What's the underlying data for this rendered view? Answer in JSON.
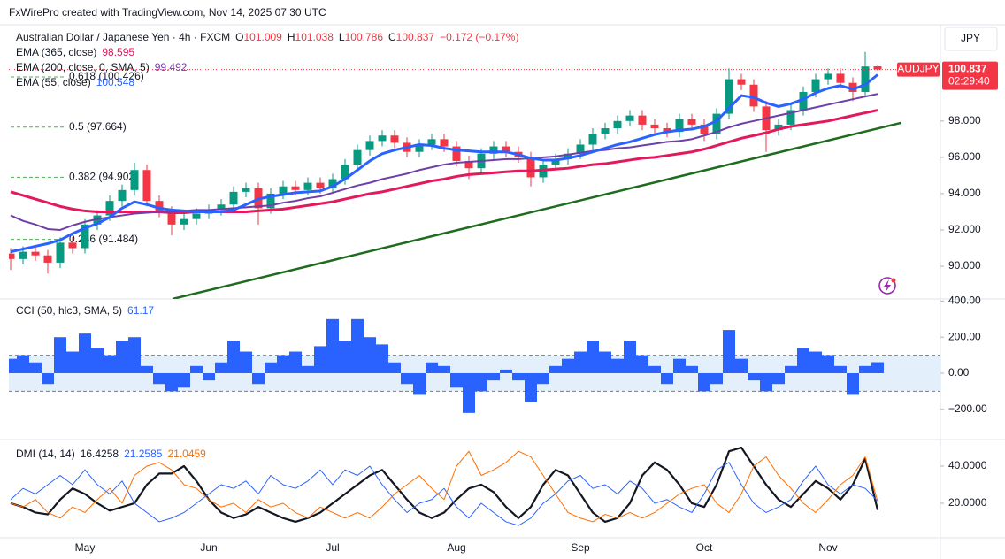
{
  "header": "FxWirePro created with TradingView.com, Nov 14, 2025 07:30 UTC",
  "chart_data": [
    {
      "type": "candlestick",
      "title": "Australian Dollar / Japanese Yen · 4h · FXCM",
      "ohlc_labels": [
        "O",
        "H",
        "L",
        "C"
      ],
      "change": "−0.172 (−0.17%)",
      "symbol": "AUDJPY",
      "currency": "JPY",
      "countdown": "02:29:40",
      "up_color": "#089981",
      "down_color": "#f23645",
      "ylim": [
        88.2,
        103.3
      ],
      "yticks": [
        {
          "value": 90,
          "label": "90.000"
        },
        {
          "value": 92,
          "label": "92.000"
        },
        {
          "value": 94,
          "label": "94.000"
        },
        {
          "value": 96,
          "label": "96.000"
        },
        {
          "value": 98,
          "label": "98.000"
        }
      ],
      "open": [
        90.7,
        90.4,
        90.8,
        90.6,
        90.2,
        91.3,
        91.0,
        92.3,
        92.8,
        93.6,
        94.2,
        95.3,
        93.6,
        93.0,
        92.3,
        92.6,
        92.9,
        93.1,
        93.4,
        94.1,
        94.3,
        93.2,
        94.0,
        94.4,
        94.2,
        94.6,
        94.3,
        94.8,
        95.6,
        96.4,
        96.9,
        97.2,
        96.8,
        96.3,
        96.7,
        97.0,
        96.6,
        95.8,
        95.4,
        96.2,
        96.6,
        96.3,
        96.0,
        94.9,
        95.6,
        95.9,
        96.2,
        96.7,
        97.3,
        97.6,
        98.0,
        98.3,
        97.8,
        97.6,
        97.4,
        98.1,
        97.8,
        97.3,
        98.4,
        100.3,
        100.0,
        98.8,
        97.5,
        97.8,
        98.6,
        99.6,
        100.3,
        100.6,
        100.1,
        99.6,
        101.009
      ],
      "high": [
        91.0,
        91.1,
        91.1,
        90.9,
        91.6,
        91.6,
        92.6,
        93.1,
        93.9,
        94.5,
        95.7,
        95.6,
        93.9,
        93.3,
        92.9,
        93.2,
        93.4,
        93.7,
        94.4,
        94.6,
        94.6,
        94.3,
        94.7,
        94.7,
        94.9,
        94.9,
        95.1,
        95.9,
        96.7,
        97.2,
        97.5,
        97.5,
        97.1,
        97.0,
        97.3,
        97.3,
        96.9,
        96.1,
        96.5,
        96.9,
        96.9,
        96.6,
        96.3,
        95.9,
        96.2,
        96.5,
        97.0,
        97.6,
        97.9,
        98.3,
        98.6,
        98.6,
        98.1,
        97.9,
        98.4,
        98.4,
        98.1,
        98.7,
        100.9,
        100.6,
        100.3,
        99.1,
        98.1,
        98.9,
        99.9,
        100.6,
        100.9,
        100.9,
        100.4,
        101.8,
        101.038
      ],
      "low": [
        89.8,
        90.1,
        90.3,
        89.6,
        89.9,
        90.7,
        90.7,
        92.0,
        92.5,
        93.3,
        93.9,
        93.3,
        92.7,
        91.7,
        92.0,
        92.3,
        92.6,
        92.8,
        93.1,
        93.8,
        92.3,
        92.9,
        93.7,
        93.9,
        93.9,
        94.0,
        94.0,
        94.5,
        95.3,
        96.1,
        96.6,
        96.5,
        96.0,
        96.0,
        96.4,
        96.3,
        95.5,
        94.8,
        95.1,
        95.9,
        96.0,
        95.7,
        94.4,
        94.6,
        95.3,
        95.6,
        95.9,
        96.4,
        97.0,
        97.3,
        97.7,
        97.5,
        97.3,
        97.1,
        97.1,
        97.5,
        96.9,
        97.0,
        98.1,
        99.7,
        98.5,
        96.3,
        97.2,
        97.5,
        98.3,
        99.3,
        100.0,
        99.8,
        99.1,
        99.3,
        100.786
      ],
      "close": [
        90.4,
        90.8,
        90.6,
        90.2,
        91.3,
        91.0,
        92.3,
        92.8,
        93.6,
        94.2,
        95.3,
        93.6,
        93.0,
        92.3,
        92.6,
        92.9,
        93.1,
        93.4,
        94.1,
        94.3,
        93.2,
        94.0,
        94.4,
        94.2,
        94.6,
        94.3,
        94.8,
        95.6,
        96.4,
        96.9,
        97.2,
        96.8,
        96.3,
        96.7,
        97.0,
        96.6,
        95.8,
        95.4,
        96.2,
        96.6,
        96.3,
        96.0,
        94.9,
        95.6,
        95.9,
        96.2,
        96.7,
        97.3,
        97.6,
        98.0,
        98.3,
        97.8,
        97.6,
        97.4,
        98.1,
        97.8,
        97.3,
        98.4,
        100.3,
        100.0,
        98.8,
        97.5,
        97.8,
        98.6,
        99.6,
        100.3,
        100.6,
        100.1,
        99.6,
        101.0,
        100.837
      ],
      "series": [
        {
          "name": "EMA (365, close)",
          "color": "#e2195a",
          "width": 3,
          "values": [
            94.1,
            93.9,
            93.7,
            93.5,
            93.3,
            93.15,
            93.05,
            93.0,
            93.0,
            93.0,
            93.0,
            93.0,
            93.0,
            92.95,
            92.95,
            93.0,
            93.0,
            93.0,
            93.0,
            93.0,
            93.05,
            93.1,
            93.15,
            93.25,
            93.35,
            93.45,
            93.55,
            93.7,
            93.85,
            94.0,
            94.1,
            94.25,
            94.4,
            94.55,
            94.7,
            94.8,
            94.95,
            95.05,
            95.1,
            95.15,
            95.2,
            95.25,
            95.25,
            95.3,
            95.35,
            95.4,
            95.5,
            95.6,
            95.65,
            95.75,
            95.85,
            95.95,
            96.0,
            96.1,
            96.2,
            96.3,
            96.45,
            96.65,
            96.85,
            97.05,
            97.2,
            97.35,
            97.55,
            97.7,
            97.8,
            97.9,
            98.0,
            98.15,
            98.3,
            98.45,
            98.595
          ]
        },
        {
          "name": "EMA (200, close, 0, SMA, 5)",
          "color": "#6f3fa8",
          "width": 2,
          "values": [
            92.8,
            92.5,
            92.3,
            92.05,
            92.0,
            92.25,
            92.45,
            92.6,
            92.7,
            92.8,
            92.9,
            92.95,
            93.0,
            93.0,
            93.05,
            93.1,
            93.1,
            93.15,
            93.2,
            93.25,
            93.3,
            93.35,
            93.5,
            93.6,
            93.75,
            93.85,
            94.05,
            94.25,
            94.45,
            94.6,
            94.8,
            94.95,
            95.1,
            95.3,
            95.45,
            95.6,
            95.7,
            95.75,
            95.8,
            95.85,
            95.9,
            95.9,
            95.95,
            96.0,
            96.05,
            96.15,
            96.25,
            96.35,
            96.4,
            96.5,
            96.55,
            96.65,
            96.75,
            96.85,
            96.9,
            97.0,
            97.2,
            97.4,
            97.65,
            97.85,
            98.0,
            98.15,
            98.3,
            98.45,
            98.6,
            98.75,
            98.9,
            99.05,
            99.2,
            99.35,
            99.492
          ]
        },
        {
          "name": "EMA (55, close)",
          "color": "#2962ff",
          "width": 3,
          "values": [
            90.8,
            90.95,
            91.1,
            91.25,
            91.45,
            91.8,
            92.1,
            92.35,
            92.7,
            93.2,
            93.55,
            93.4,
            93.2,
            93.1,
            93.05,
            93.0,
            93.0,
            93.0,
            93.1,
            93.4,
            93.7,
            93.85,
            93.95,
            94.05,
            94.1,
            94.15,
            94.4,
            94.8,
            95.3,
            95.8,
            96.2,
            96.4,
            96.55,
            96.7,
            96.65,
            96.5,
            96.4,
            96.35,
            96.3,
            96.3,
            96.3,
            96.15,
            95.95,
            95.85,
            95.85,
            95.95,
            96.1,
            96.3,
            96.5,
            96.7,
            96.85,
            97.05,
            97.25,
            97.4,
            97.5,
            97.55,
            97.7,
            98.0,
            98.7,
            99.4,
            99.3,
            99.0,
            98.8,
            98.95,
            99.2,
            99.55,
            99.8,
            99.95,
            99.75,
            100.0,
            100.548
          ]
        }
      ],
      "fib_levels": [
        {
          "value": 100.426,
          "label": "0.618 (100.426)",
          "color": "#6f3fa8"
        },
        {
          "value": 97.664,
          "label": "0.5 (97.664)",
          "color": "#4caf50"
        },
        {
          "value": 94.902,
          "label": "0.382 (94.902)",
          "color": "#6f3fa8"
        },
        {
          "value": 91.484,
          "label": "0.236 (91.484)",
          "color": "#2962ff"
        }
      ],
      "trendline": {
        "color": "#1f6b1f",
        "x": [
          13.07,
          71.9
        ],
        "values": [
          88.2,
          97.9
        ]
      }
    },
    {
      "type": "bar",
      "title": "CCI (50, hlc3, SMA, 5)",
      "color": "#2962ff",
      "band_color": "#e3f0fb",
      "band": [
        -100,
        100
      ],
      "ylim": [
        -368,
        412
      ],
      "yticks": [
        {
          "value": -200,
          "label": "−200.00"
        },
        {
          "value": 0,
          "label": "0.00"
        },
        {
          "value": 200,
          "label": "200.00"
        },
        {
          "value": 400,
          "label": "400.00"
        }
      ],
      "values": [
        80,
        100,
        60,
        -60,
        200,
        120,
        220,
        140,
        100,
        180,
        200,
        40,
        -60,
        -100,
        -80,
        40,
        -40,
        60,
        180,
        120,
        -60,
        60,
        100,
        120,
        40,
        150,
        300,
        180,
        300,
        200,
        160,
        60,
        -60,
        -120,
        60,
        40,
        -80,
        -220,
        -100,
        -40,
        20,
        -40,
        -160,
        -60,
        40,
        80,
        120,
        180,
        120,
        80,
        180,
        100,
        40,
        -60,
        80,
        40,
        -100,
        -60,
        240,
        80,
        -40,
        -100,
        -60,
        40,
        140,
        120,
        100,
        40,
        -120,
        40,
        61.17
      ]
    },
    {
      "type": "line",
      "title": "DMI (14, 14)",
      "ylim": [
        1.4,
        54.3
      ],
      "yticks": [
        {
          "value": 20,
          "label": "20.0000"
        },
        {
          "value": 40,
          "label": "40.0000"
        }
      ],
      "categories": [
        null,
        null,
        null,
        null,
        null,
        null,
        "May",
        null,
        null,
        null,
        null,
        null,
        null,
        null,
        null,
        null,
        "Jun",
        null,
        null,
        null,
        null,
        null,
        null,
        null,
        null,
        null,
        "Jul",
        null,
        null,
        null,
        null,
        null,
        null,
        null,
        null,
        null,
        "Aug",
        null,
        null,
        null,
        null,
        null,
        null,
        null,
        null,
        null,
        "Sep",
        null,
        null,
        null,
        null,
        null,
        null,
        null,
        null,
        null,
        "Oct",
        null,
        null,
        null,
        null,
        null,
        null,
        null,
        null,
        null,
        "Nov",
        null,
        null,
        null,
        null
      ],
      "series": [
        {
          "color": "#131722",
          "width": 2.2,
          "values": [
            20,
            18,
            15,
            14,
            22,
            28,
            25,
            20,
            16,
            18,
            20,
            30,
            36,
            36,
            40,
            32,
            22,
            15,
            12,
            14,
            18,
            15,
            12,
            10,
            12,
            15,
            20,
            25,
            30,
            35,
            38,
            30,
            22,
            15,
            12,
            15,
            22,
            28,
            30,
            26,
            18,
            12,
            18,
            30,
            38,
            35,
            25,
            15,
            10,
            12,
            20,
            35,
            42,
            38,
            30,
            20,
            18,
            30,
            48,
            50,
            40,
            30,
            22,
            18,
            25,
            32,
            28,
            22,
            30,
            44,
            16.4258
          ]
        },
        {
          "color": "#2962ff",
          "width": 1,
          "values": [
            22,
            28,
            25,
            30,
            35,
            30,
            38,
            30,
            25,
            32,
            20,
            15,
            10,
            12,
            15,
            20,
            25,
            30,
            28,
            32,
            25,
            35,
            30,
            28,
            32,
            38,
            30,
            38,
            35,
            40,
            30,
            22,
            15,
            20,
            22,
            28,
            18,
            12,
            20,
            15,
            10,
            8,
            12,
            20,
            25,
            32,
            35,
            28,
            30,
            25,
            32,
            28,
            20,
            22,
            18,
            15,
            25,
            38,
            42,
            30,
            20,
            15,
            18,
            22,
            32,
            40,
            30,
            25,
            30,
            28,
            21.2585
          ]
        },
        {
          "color": "#ff6d00",
          "width": 1,
          "values": [
            20,
            18,
            22,
            15,
            12,
            18,
            15,
            22,
            28,
            20,
            35,
            40,
            42,
            38,
            30,
            28,
            22,
            18,
            20,
            15,
            22,
            18,
            20,
            15,
            12,
            18,
            15,
            12,
            15,
            12,
            18,
            25,
            30,
            35,
            28,
            22,
            40,
            48,
            35,
            38,
            42,
            48,
            45,
            35,
            25,
            15,
            12,
            10,
            14,
            12,
            15,
            12,
            15,
            20,
            25,
            28,
            30,
            20,
            15,
            25,
            40,
            45,
            35,
            28,
            20,
            15,
            22,
            30,
            35,
            45,
            21.0459
          ]
        }
      ]
    }
  ]
}
